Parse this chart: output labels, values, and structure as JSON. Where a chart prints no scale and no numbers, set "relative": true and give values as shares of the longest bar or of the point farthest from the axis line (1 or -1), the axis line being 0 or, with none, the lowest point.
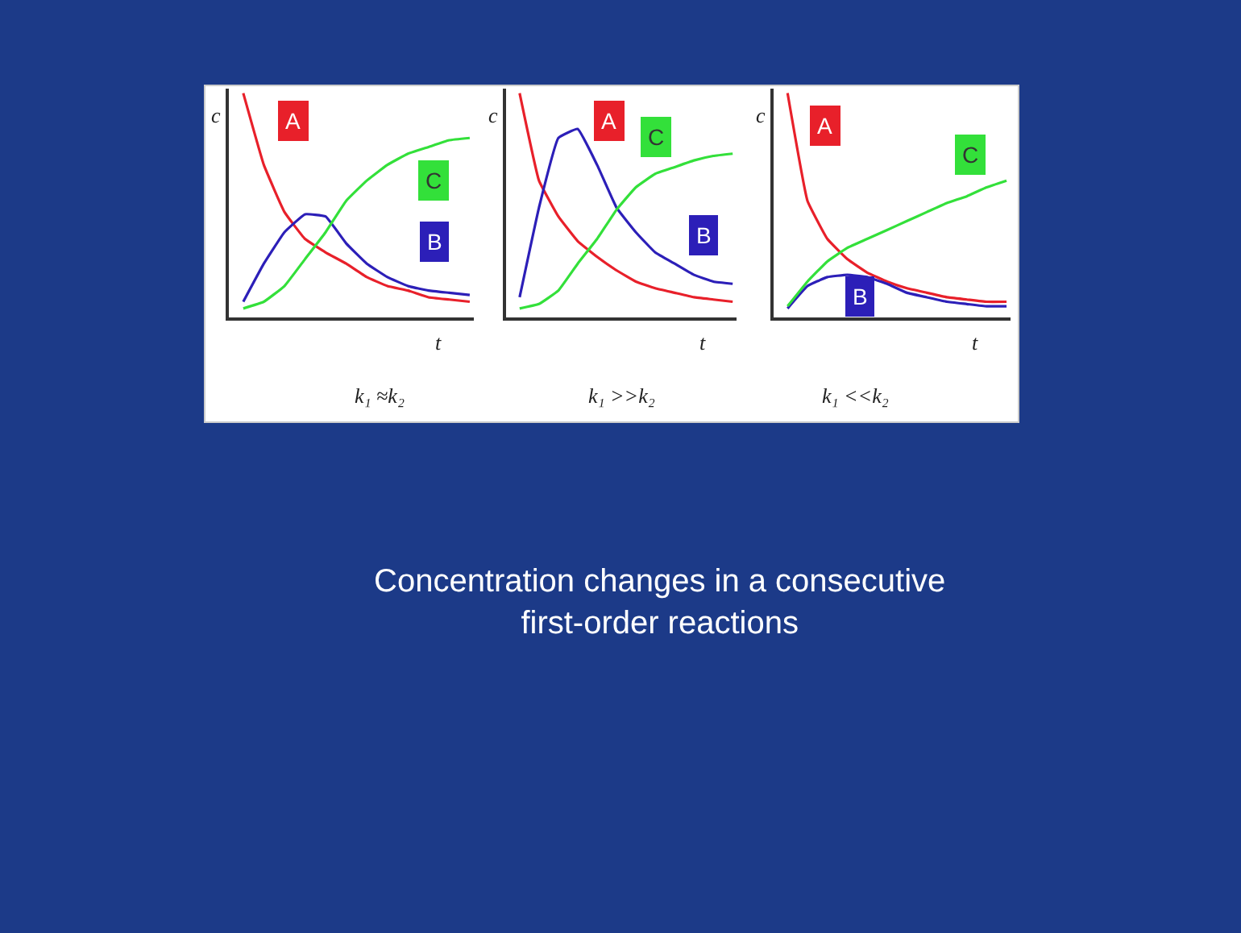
{
  "chart_data": [
    {
      "type": "line",
      "title": "k₁ ≈k₂",
      "xlabel": "t",
      "ylabel": "c",
      "relative": true,
      "categories": [
        null,
        null,
        null,
        null,
        null,
        null,
        null,
        null,
        null,
        null,
        null,
        null
      ],
      "series": [
        {
          "name": "A",
          "color": "#e8202a",
          "values": [
            1.0,
            0.68,
            0.47,
            0.35,
            0.29,
            0.24,
            0.18,
            0.14,
            0.12,
            0.09,
            0.08,
            0.07
          ]
        },
        {
          "name": "B",
          "color": "#2c1fb8",
          "values": [
            0.07,
            0.24,
            0.38,
            0.46,
            0.45,
            0.33,
            0.24,
            0.18,
            0.14,
            0.12,
            0.11,
            0.1
          ]
        },
        {
          "name": "C",
          "color": "#33e03a",
          "values": [
            0.04,
            0.07,
            0.14,
            0.26,
            0.38,
            0.52,
            0.61,
            0.68,
            0.73,
            0.76,
            0.79,
            0.8
          ]
        }
      ]
    },
    {
      "type": "line",
      "title": "k₁ >>k₂",
      "xlabel": "t",
      "ylabel": "c",
      "relative": true,
      "categories": [
        null,
        null,
        null,
        null,
        null,
        null,
        null,
        null,
        null,
        null,
        null,
        null
      ],
      "series": [
        {
          "name": "A",
          "color": "#e8202a",
          "values": [
            1.0,
            0.61,
            0.45,
            0.34,
            0.27,
            0.21,
            0.16,
            0.13,
            0.11,
            0.09,
            0.08,
            0.07
          ]
        },
        {
          "name": "B",
          "color": "#2c1fb8",
          "values": [
            0.09,
            0.49,
            0.8,
            0.84,
            0.68,
            0.49,
            0.38,
            0.29,
            0.24,
            0.19,
            0.16,
            0.15
          ]
        },
        {
          "name": "C",
          "color": "#33e03a",
          "values": [
            0.04,
            0.06,
            0.12,
            0.24,
            0.35,
            0.48,
            0.58,
            0.64,
            0.67,
            0.7,
            0.72,
            0.73
          ]
        }
      ]
    },
    {
      "type": "line",
      "title": "k₁ <<k₂",
      "xlabel": "t",
      "ylabel": "c",
      "relative": true,
      "categories": [
        null,
        null,
        null,
        null,
        null,
        null,
        null,
        null,
        null,
        null,
        null,
        null
      ],
      "series": [
        {
          "name": "A",
          "color": "#e8202a",
          "values": [
            1.0,
            0.52,
            0.35,
            0.26,
            0.2,
            0.16,
            0.13,
            0.11,
            0.09,
            0.08,
            0.07,
            0.07
          ]
        },
        {
          "name": "B",
          "color": "#2c1fb8",
          "values": [
            0.04,
            0.14,
            0.18,
            0.19,
            0.18,
            0.15,
            0.11,
            0.09,
            0.07,
            0.06,
            0.05,
            0.05
          ]
        },
        {
          "name": "C",
          "color": "#33e03a",
          "values": [
            0.05,
            0.16,
            0.25,
            0.31,
            0.35,
            0.39,
            0.43,
            0.47,
            0.51,
            0.54,
            0.58,
            0.61
          ]
        }
      ]
    },
    {
      "type": "other",
      "title": "Concentration changes in a consecutive\nfirst-order reactions"
    }
  ]
}
